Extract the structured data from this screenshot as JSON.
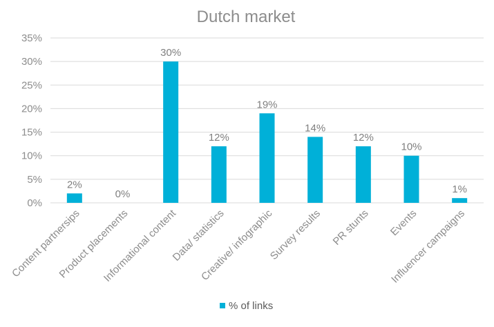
{
  "chart_data": {
    "type": "bar",
    "title": "Dutch market",
    "categories": [
      "Content partnersips",
      "Product placements",
      "Informational content",
      "Data/ statistics",
      "Creative/ infographic",
      "Survey results",
      "PR stunts",
      "Events",
      "Influencer campaigns"
    ],
    "series": [
      {
        "name": "% of links",
        "values": [
          2,
          0,
          30,
          12,
          19,
          14,
          12,
          10,
          1
        ],
        "data_labels": [
          "2%",
          "0%",
          "30%",
          "12%",
          "19%",
          "14%",
          "12%",
          "10%",
          "1%"
        ]
      }
    ],
    "ylim": [
      0,
      35
    ],
    "yticks": [
      "0%",
      "5%",
      "10%",
      "15%",
      "20%",
      "25%",
      "30%",
      "35%"
    ],
    "ytick_values": [
      0,
      5,
      10,
      15,
      20,
      25,
      30,
      35
    ],
    "grid": true,
    "legend_position": "bottom",
    "colors": {
      "bar": "#00B0D8",
      "grid": "#D9D9D9",
      "title": "#8C8C8C",
      "tick_text": "#8C8C8C",
      "data_label": "#7F7F7F"
    }
  }
}
